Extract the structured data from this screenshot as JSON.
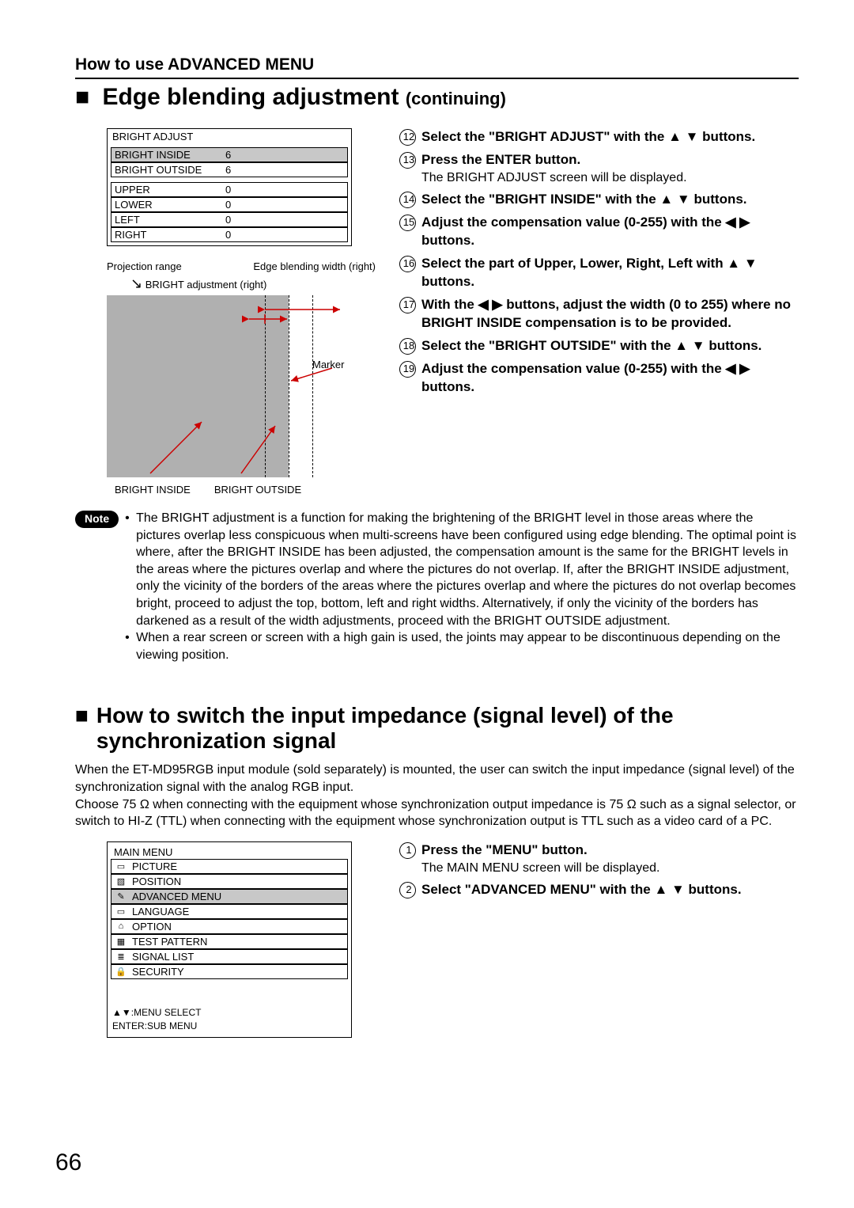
{
  "header": {
    "section": "How to use ADVANCED MENU"
  },
  "title1": {
    "square": "■",
    "main": "Edge blending adjustment",
    "cont": "(continuing)"
  },
  "bright_table": {
    "title": "BRIGHT ADJUST",
    "rows": [
      {
        "label": "BRIGHT INSIDE",
        "value": "6",
        "hi": true
      },
      {
        "label": "BRIGHT OUTSIDE",
        "value": "6",
        "hi": false
      }
    ],
    "rows2": [
      {
        "label": "UPPER",
        "value": "0"
      },
      {
        "label": "LOWER",
        "value": "0"
      },
      {
        "label": "LEFT",
        "value": "0"
      },
      {
        "label": "RIGHT",
        "value": "0"
      }
    ]
  },
  "diagram": {
    "top_left": "Projection range",
    "top_right": "Edge blending width (right)",
    "sub": "BRIGHT adjustment (right)",
    "marker": "Marker",
    "bottom_left": "BRIGHT INSIDE",
    "bottom_right": "BRIGHT OUTSIDE",
    "gray": "#b0b0b0",
    "arrow_color": "#cc0000"
  },
  "steps1": [
    {
      "n": "12",
      "bold": "Select the \"BRIGHT ADJUST\" with the ▲ ▼ buttons."
    },
    {
      "n": "13",
      "bold": "Press the ENTER button.",
      "sub": "The BRIGHT ADJUST screen will be displayed."
    },
    {
      "n": "14",
      "bold": "Select the \"BRIGHT INSIDE\" with the ▲ ▼ buttons."
    },
    {
      "n": "15",
      "bold": "Adjust the compensation value (0-255) with the ◀  ▶ buttons."
    },
    {
      "n": "16",
      "bold": "Select the part of Upper, Lower, Right, Left with ▲ ▼ buttons."
    },
    {
      "n": "17",
      "bold": "With the ◀  ▶ buttons, adjust the width (0 to 255) where no BRIGHT INSIDE compensation is to be provided."
    },
    {
      "n": "18",
      "bold": "Select the \"BRIGHT OUTSIDE\" with the ▲ ▼ buttons."
    },
    {
      "n": "19",
      "bold": "Adjust the compensation value (0-255) with the ◀  ▶ buttons."
    }
  ],
  "note": {
    "label": "Note",
    "bullets": [
      "The BRIGHT adjustment is a function for making the brightening of the BRIGHT level in those areas where the pictures overlap less conspicuous when multi-screens have been configured using edge blending.  The optimal point is where, after the BRIGHT INSIDE has been adjusted, the compensation amount is the same for the BRIGHT levels in the areas where the pictures overlap and where the pictures do not overlap.  If, after the BRIGHT INSIDE adjustment, only the vicinity of the borders of the areas where the pictures overlap and where the pictures do not overlap becomes bright, proceed to adjust the top, bottom, left and right widths.  Alternatively, if only the vicinity of the borders has darkened as a result of the width adjustments, proceed with the BRIGHT OUTSIDE adjustment.",
      "When a rear screen or screen with a high gain is used, the joints may appear to be discontinuous depending on the viewing position."
    ]
  },
  "title2": {
    "square": "■",
    "main": "How to switch the input impedance (signal level) of the synchronization signal"
  },
  "intro2": "When the ET-MD95RGB input module (sold separately) is mounted, the user can switch the input impedance (signal level) of the synchronization signal with the analog RGB input.\nChoose 75 Ω when connecting with the equipment whose synchronization output impedance is 75 Ω such as a signal selector, or switch to HI-Z (TTL) when connecting with the equipment whose synchronization output is TTL such as a video card of a PC.",
  "menu": {
    "title": "MAIN MENU",
    "items": [
      {
        "icon": "▭",
        "label": "PICTURE",
        "hi": false
      },
      {
        "icon": "▧",
        "label": "POSITION",
        "hi": false
      },
      {
        "icon": "✎",
        "label": "ADVANCED MENU",
        "hi": true
      },
      {
        "icon": "▭",
        "label": "LANGUAGE",
        "hi": false
      },
      {
        "icon": "⌂",
        "label": "OPTION",
        "hi": false
      },
      {
        "icon": "▦",
        "label": "TEST PATTERN",
        "hi": false
      },
      {
        "icon": "≣",
        "label": "SIGNAL LIST",
        "hi": false
      },
      {
        "icon": "🔒",
        "label": "SECURITY",
        "hi": false
      }
    ],
    "hint1": "▲▼:MENU SELECT",
    "hint2": "ENTER:SUB MENU"
  },
  "steps2": [
    {
      "n": "1",
      "bold": "Press the \"MENU\" button.",
      "sub": "The MAIN MENU screen will be displayed."
    },
    {
      "n": "2",
      "bold": "Select \"ADVANCED MENU\" with the ▲ ▼ buttons."
    }
  ],
  "page": "66"
}
